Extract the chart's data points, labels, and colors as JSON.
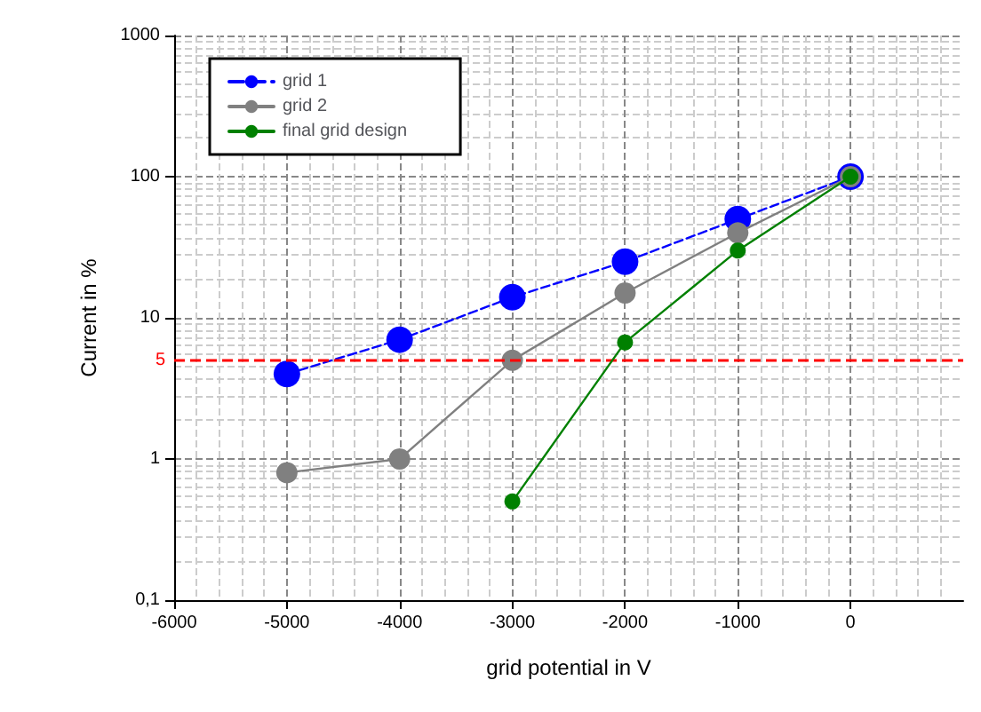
{
  "chart_data": {
    "type": "line",
    "xlabel": "grid potential in V",
    "ylabel": "Current in %",
    "x": [
      -5000,
      -4000,
      -3000,
      -2000,
      -1000,
      0
    ],
    "series": [
      {
        "name": "grid 1",
        "color": "#0000ff",
        "line_style": "dashed",
        "values": [
          4,
          7,
          14,
          25,
          50,
          100
        ]
      },
      {
        "name": "grid 2",
        "color": "#808080",
        "values": [
          0.8,
          1,
          5,
          15,
          40,
          100
        ]
      },
      {
        "name": "final grid design",
        "color": "#008000",
        "values": [
          null,
          null,
          0.5,
          6.7,
          30,
          100
        ]
      }
    ],
    "xlim": [
      -6000,
      1000
    ],
    "xticks": [
      -6000,
      -5000,
      -4000,
      -3000,
      -2000,
      -1000,
      0
    ],
    "ylim": [
      0.1,
      1000
    ],
    "yticks": [
      {
        "value": 0.1,
        "label": "0,1"
      },
      1,
      10,
      100,
      1000
    ],
    "log": "y",
    "grid": true,
    "legend": "top left",
    "marker": "circle",
    "line_style": "solid",
    "ref_lines": [
      {
        "axis": "y",
        "value": 5,
        "label": "5",
        "color": "#ff0000",
        "line_style": "dashed"
      }
    ]
  }
}
